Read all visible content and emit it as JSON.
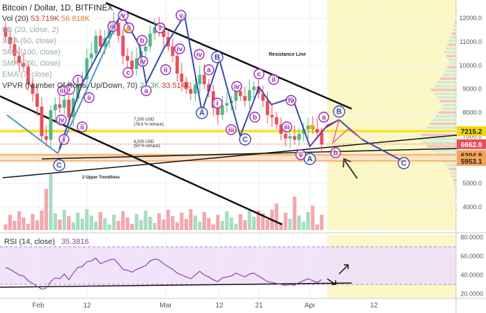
{
  "header": {
    "title": "Bitcoin / Dollar, 1D, BITFINEX",
    "vol_label": "Vol (20)",
    "vol_value_1": "53.719K",
    "vol_value_2": "56.818K",
    "indicators": [
      "BB (20, close, 2)",
      "SMA (50, close)",
      "SMA (100, close)",
      "SMA (200, close)",
      "EMA (7, close)"
    ],
    "vpvr_label": "VPVR (Number Of Rows, Up/Down, 70)",
    "vpvr_value_1": "27.3K",
    "vpvr_value_2": "33.514K"
  },
  "colors": {
    "up": "#53b987",
    "down": "#eb4d5c",
    "projection": "#fbf7c6",
    "resistance": "#f5d60b",
    "support": "#f4a259",
    "wave_pink": "#9c27b0",
    "wave_blue": "#3949ab",
    "rsi_line": "#8e44ad"
  },
  "annotations": {
    "resistance_line": "Resistance Line",
    "upper_trendlines": "2 Upper Trendlines",
    "retrace_7200": "7,200 USD",
    "retrace_7200_sub": "(78.6 % retrace)",
    "retrace_6000": "6,000 USD",
    "retrace_6000_sub": "(50 % retrace)"
  },
  "wave_labels": [
    "i",
    "ii",
    "iii",
    "iv",
    "v",
    "a",
    "b",
    "c",
    "A",
    "B",
    "C"
  ],
  "chart_data": [
    {
      "type": "candlestick",
      "title": "Bitcoin / Dollar, 1D, BITFINEX",
      "xlabel": "",
      "ylabel": "",
      "x_ticks": [
        "Feb",
        "12",
        "Mar",
        "12",
        "21",
        "Apr",
        "12"
      ],
      "y_ticks": [
        4000,
        5000,
        6000,
        7000,
        8000,
        9000,
        10000,
        11000,
        12000
      ],
      "ylim": [
        3200,
        12700
      ],
      "grid": true,
      "price_labels": [
        {
          "value": 7215.2,
          "text": "7215.2"
        },
        {
          "value": 6662.9,
          "text": "6662.9"
        },
        {
          "value": 6204.9,
          "text": "6204.9"
        },
        {
          "value": 5953.1,
          "text": "5953.1"
        }
      ],
      "horizontal_levels": [
        7215.2,
        6204.9,
        5953.1
      ],
      "closes": [
        11200,
        10900,
        10400,
        10100,
        9950,
        9200,
        8800,
        8250,
        7000,
        6850,
        8100,
        8350,
        8200,
        8550,
        7800,
        8600,
        9300,
        9400,
        10300,
        10500,
        11250,
        10800,
        11150,
        11500,
        11800,
        11250,
        10400,
        10200,
        9850,
        10300,
        10600,
        10800,
        11350,
        11600,
        11550,
        11200,
        10800,
        10400,
        9650,
        9300,
        9000,
        8800,
        9200,
        9600,
        9200,
        8900,
        8200,
        7900,
        8300,
        8400,
        8500,
        8900,
        8700,
        8500,
        8950,
        9100,
        8800,
        8500,
        7900,
        7800,
        7500,
        7100,
        6900,
        7000,
        6850,
        7100,
        7300,
        7450,
        7300,
        7150,
        6650
      ]
    },
    {
      "type": "line",
      "title": "RSI (14, close)",
      "current_value": "35.3816",
      "y_ticks": [
        20.0,
        40.0,
        60.0,
        80.0
      ],
      "y_tick_labels": [
        "20.0000",
        "40.0000",
        "60.0000",
        "80.0000"
      ],
      "ylim": [
        15,
        85
      ],
      "overbought": 70,
      "oversold": 30,
      "values": [
        48,
        46,
        43,
        40,
        39,
        34,
        31,
        28,
        25,
        26,
        33,
        37,
        36,
        41,
        35,
        42,
        48,
        49,
        54,
        55,
        58,
        52,
        54,
        56,
        57,
        52,
        46,
        45,
        43,
        46,
        48,
        50,
        55,
        57,
        56,
        52,
        49,
        46,
        42,
        40,
        38,
        36,
        40,
        44,
        40,
        38,
        35,
        33,
        37,
        38,
        39,
        42,
        40,
        38,
        41,
        42,
        39,
        36,
        33,
        32,
        31,
        30,
        29,
        30,
        29,
        32,
        34,
        36,
        34,
        32,
        35
      ]
    }
  ]
}
